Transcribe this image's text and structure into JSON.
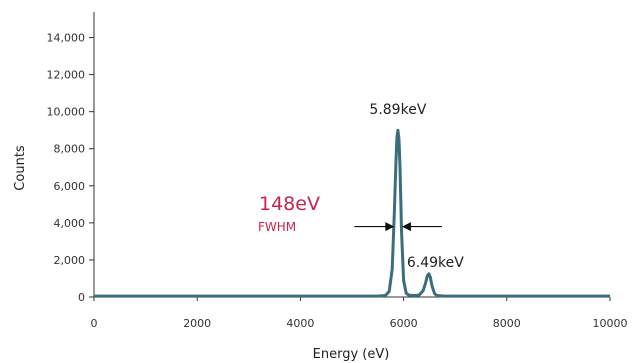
{
  "chart_data": {
    "type": "line",
    "xlabel": "Energy (eV)",
    "ylabel": "Counts",
    "xlim": [
      0,
      10000
    ],
    "ylim": [
      0,
      15000
    ],
    "x_ticks": [
      0,
      2000,
      4000,
      6000,
      8000,
      10000
    ],
    "x_tick_labels": [
      "0",
      "2000",
      "4000",
      "6000",
      "8000",
      "10000"
    ],
    "y_ticks": [
      0,
      2000,
      4000,
      6000,
      8000,
      10000,
      12000,
      14000
    ],
    "y_tick_labels": [
      "0",
      "2,000",
      "4,000",
      "6,000",
      "8,000",
      "10,000",
      "12,000",
      "14,000"
    ],
    "grid": false,
    "legend": "none",
    "series": [
      {
        "color": "#3b6e7c",
        "x": [
          0,
          5500,
          5650,
          5720,
          5780,
          5820,
          5850,
          5870,
          5890,
          5910,
          5930,
          5960,
          6000,
          6050,
          6100,
          6200,
          6300,
          6380,
          6430,
          6460,
          6490,
          6520,
          6550,
          6600,
          6650,
          6800,
          10000
        ],
        "y": [
          50,
          50,
          80,
          300,
          1500,
          4500,
          7200,
          8600,
          9000,
          8500,
          7000,
          3600,
          900,
          200,
          100,
          80,
          100,
          350,
          800,
          1150,
          1250,
          1050,
          600,
          180,
          80,
          50,
          50
        ]
      }
    ],
    "annotations": {
      "peak1": {
        "text": "5.89keV",
        "x": 5890,
        "y": 9000
      },
      "peak2": {
        "text": "6.49keV",
        "x": 6490,
        "y": 1250
      },
      "fwhm_value": "148eV",
      "fwhm_label": "FWHM",
      "fwhm_y": 3800,
      "fwhm_left_x": 5820,
      "fwhm_right_x": 5968
    }
  }
}
